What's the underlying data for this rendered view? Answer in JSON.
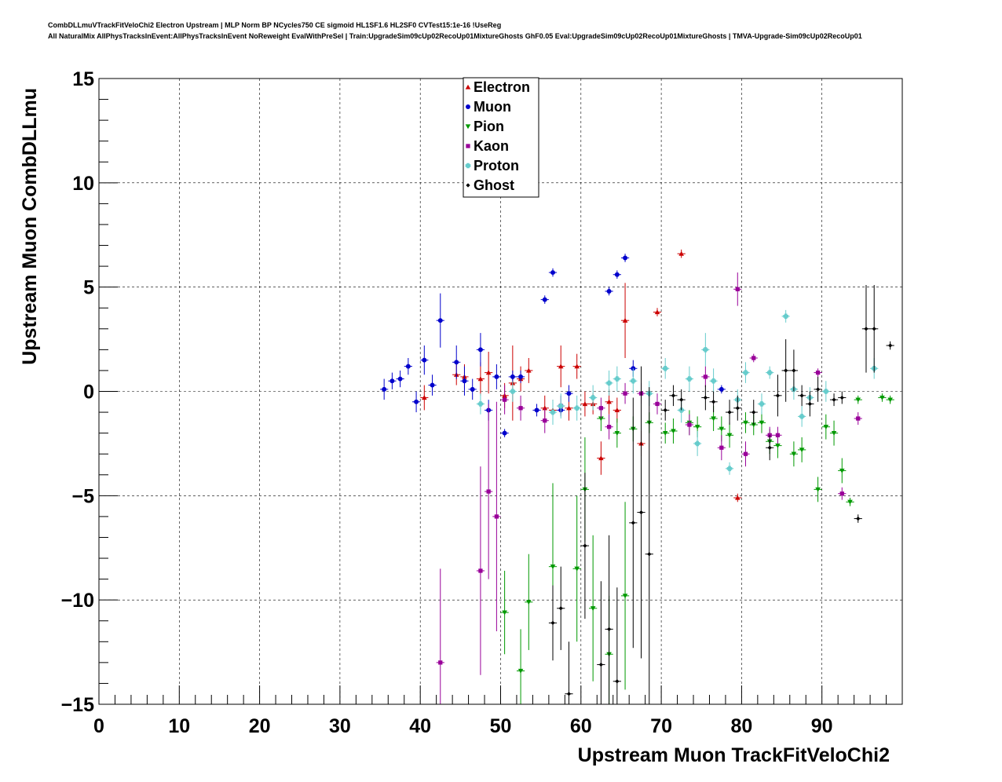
{
  "title_lines": [
    "CombDLLmuVTrackFitVeloChi2 Electron Upstream | MLP Norm BP NCycles750 CE sigmoid HL1SF1.6 HL2SF0 CVTest15:1e-16 !UseReg",
    "All NaturalMix AllPhysTracksInEvent:AllPhysTracksInEvent NoReweight EvalWithPreSel | Train:UpgradeSim09cUp02RecoUp01MixtureGhosts GhF0.05 Eval:UpgradeSim09cUp02RecoUp01MixtureGhosts | TMVA-Upgrade-Sim09cUp02RecoUp01"
  ],
  "chart_data": {
    "type": "scatter",
    "xlabel": "Upstream Muon TrackFitVeloChi2",
    "ylabel": "Upstream Muon CombDLLmu",
    "xlim": [
      0,
      100
    ],
    "ylim": [
      -15,
      15
    ],
    "xticks": [
      0,
      10,
      20,
      30,
      40,
      50,
      60,
      70,
      80,
      90
    ],
    "yticks": [
      -15,
      -10,
      -5,
      0,
      5,
      10,
      15
    ],
    "grid": true,
    "legend_position": "top-center",
    "series": [
      {
        "name": "Electron",
        "color": "#cc0000",
        "marker": "triangle-up",
        "points": [
          [
            40.5,
            -0.3,
            0.6
          ],
          [
            44.5,
            0.8,
            0.5
          ],
          [
            45.5,
            0.7,
            0.6
          ],
          [
            47.5,
            0.6,
            0.8
          ],
          [
            48.5,
            0.9,
            1.0
          ],
          [
            50.5,
            -0.2,
            0.6
          ],
          [
            51.5,
            0.4,
            1.8
          ],
          [
            52.5,
            0.6,
            0.6
          ],
          [
            53.5,
            1.0,
            0.6
          ],
          [
            55.5,
            -0.8,
            0.6
          ],
          [
            56.5,
            -0.9,
            0.5
          ],
          [
            57.5,
            1.2,
            1.0
          ],
          [
            58.5,
            -0.8,
            0.6
          ],
          [
            59.5,
            1.2,
            0.6
          ],
          [
            60.5,
            -0.6,
            0.6
          ],
          [
            61.5,
            -0.6,
            0.5
          ],
          [
            62.5,
            -3.2,
            0.8
          ],
          [
            63.5,
            -0.5,
            0.6
          ],
          [
            64.5,
            -0.9,
            0.6
          ],
          [
            65.5,
            3.4,
            1.8
          ],
          [
            67.5,
            -2.5,
            0.6
          ],
          [
            69.5,
            3.8,
            0.2
          ],
          [
            72.5,
            6.6,
            0.2
          ],
          [
            79.5,
            -5.1,
            0.2
          ]
        ]
      },
      {
        "name": "Muon",
        "color": "#0000cc",
        "marker": "circle",
        "points": [
          [
            35.5,
            0.1,
            0.5
          ],
          [
            36.5,
            0.5,
            0.4
          ],
          [
            37.5,
            0.6,
            0.4
          ],
          [
            38.5,
            1.2,
            0.4
          ],
          [
            39.5,
            -0.5,
            0.5
          ],
          [
            40.5,
            1.5,
            0.7
          ],
          [
            41.5,
            0.3,
            0.5
          ],
          [
            42.5,
            3.4,
            1.3
          ],
          [
            44.5,
            1.4,
            0.8
          ],
          [
            45.5,
            0.5,
            0.7
          ],
          [
            46.5,
            0.1,
            0.5
          ],
          [
            47.5,
            2.0,
            0.8
          ],
          [
            48.5,
            -0.9,
            0.5
          ],
          [
            49.5,
            0.7,
            0.6
          ],
          [
            50.5,
            -2.0,
            0.2
          ],
          [
            51.5,
            0.7,
            0.3
          ],
          [
            52.5,
            0.7,
            0.3
          ],
          [
            54.5,
            -0.9,
            0.3
          ],
          [
            55.5,
            4.4,
            0.2
          ],
          [
            56.5,
            5.7,
            0.2
          ],
          [
            57.5,
            -0.9,
            0.2
          ],
          [
            58.5,
            -0.1,
            0.4
          ],
          [
            63.5,
            4.8,
            0.2
          ],
          [
            64.5,
            5.6,
            0.2
          ],
          [
            65.5,
            6.4,
            0.2
          ],
          [
            66.5,
            1.1,
            0.4
          ],
          [
            77.5,
            0.1,
            0.2
          ]
        ]
      },
      {
        "name": "Pion",
        "color": "#009900",
        "marker": "triangle-down",
        "points": [
          [
            50.5,
            -10.6,
            2.0
          ],
          [
            52.5,
            -13.4,
            2.0
          ],
          [
            53.5,
            -10.1,
            2.3
          ],
          [
            56.5,
            -8.4,
            4.0
          ],
          [
            59.5,
            -8.5,
            3.5
          ],
          [
            60.5,
            -4.7,
            2.5
          ],
          [
            61.5,
            -10.4,
            3.5
          ],
          [
            62.5,
            -1.3,
            0.6
          ],
          [
            63.5,
            -12.6,
            2.8
          ],
          [
            64.5,
            -2.0,
            0.7
          ],
          [
            65.5,
            -9.8,
            4.5
          ],
          [
            66.5,
            -1.8,
            0.6
          ],
          [
            68.5,
            -1.5,
            0.5
          ],
          [
            70.5,
            -2.0,
            0.5
          ],
          [
            71.5,
            -1.9,
            0.6
          ],
          [
            73.5,
            -1.5,
            0.6
          ],
          [
            74.5,
            -1.7,
            0.5
          ],
          [
            76.5,
            -1.3,
            0.6
          ],
          [
            77.5,
            -1.8,
            0.6
          ],
          [
            78.5,
            -2.1,
            0.6
          ],
          [
            80.5,
            -1.5,
            0.5
          ],
          [
            81.5,
            -1.6,
            0.5
          ],
          [
            82.5,
            -1.5,
            0.5
          ],
          [
            83.5,
            -2.4,
            0.6
          ],
          [
            84.5,
            -2.6,
            0.6
          ],
          [
            86.5,
            -3.0,
            0.6
          ],
          [
            87.5,
            -2.8,
            0.6
          ],
          [
            89.5,
            -4.7,
            0.6
          ],
          [
            90.5,
            -1.7,
            0.6
          ],
          [
            91.5,
            -2.0,
            0.6
          ],
          [
            92.5,
            -3.8,
            0.6
          ],
          [
            93.5,
            -5.3,
            0.2
          ],
          [
            94.5,
            -0.4,
            0.2
          ],
          [
            97.5,
            -0.3,
            0.2
          ],
          [
            98.5,
            -0.4,
            0.2
          ]
        ]
      },
      {
        "name": "Kaon",
        "color": "#990099",
        "marker": "square",
        "points": [
          [
            42.5,
            -13.0,
            4.5
          ],
          [
            47.5,
            -8.6,
            5.0
          ],
          [
            48.5,
            -4.8,
            4.2
          ],
          [
            49.5,
            -6.0,
            5.5
          ],
          [
            50.5,
            -0.4,
            0.7
          ],
          [
            52.5,
            -0.8,
            0.6
          ],
          [
            55.5,
            -1.4,
            0.6
          ],
          [
            57.5,
            -0.7,
            0.5
          ],
          [
            62.5,
            -0.8,
            0.5
          ],
          [
            63.5,
            -1.7,
            0.6
          ],
          [
            65.5,
            -0.1,
            0.5
          ],
          [
            67.5,
            -0.1,
            0.5
          ],
          [
            69.5,
            -0.6,
            0.5
          ],
          [
            73.5,
            -1.6,
            0.5
          ],
          [
            75.5,
            0.7,
            0.5
          ],
          [
            77.5,
            -2.7,
            0.6
          ],
          [
            79.5,
            4.9,
            0.8
          ],
          [
            80.5,
            -3.0,
            0.6
          ],
          [
            81.5,
            1.6,
            0.2
          ],
          [
            83.5,
            -2.1,
            0.4
          ],
          [
            84.5,
            -2.1,
            0.4
          ],
          [
            89.5,
            0.9,
            0.2
          ],
          [
            92.5,
            -4.9,
            0.3
          ],
          [
            94.5,
            -1.3,
            0.3
          ]
        ]
      },
      {
        "name": "Proton",
        "color": "#66cccc",
        "marker": "cross",
        "points": [
          [
            47.5,
            -0.6,
            0.5
          ],
          [
            51.5,
            0.0,
            0.5
          ],
          [
            56.5,
            -1.0,
            0.6
          ],
          [
            57.5,
            -0.7,
            0.6
          ],
          [
            59.5,
            -0.8,
            0.6
          ],
          [
            61.5,
            -0.3,
            0.6
          ],
          [
            63.5,
            0.4,
            0.6
          ],
          [
            64.5,
            0.6,
            0.6
          ],
          [
            66.5,
            0.5,
            0.6
          ],
          [
            68.5,
            -0.1,
            0.6
          ],
          [
            70.5,
            1.1,
            0.5
          ],
          [
            72.5,
            -0.9,
            0.6
          ],
          [
            73.5,
            0.6,
            0.6
          ],
          [
            74.5,
            -2.5,
            0.6
          ],
          [
            75.5,
            2.0,
            0.8
          ],
          [
            76.5,
            0.5,
            0.6
          ],
          [
            78.5,
            -3.7,
            0.3
          ],
          [
            79.5,
            -0.4,
            0.5
          ],
          [
            80.5,
            0.9,
            0.5
          ],
          [
            82.5,
            -0.6,
            0.5
          ],
          [
            83.5,
            0.9,
            0.3
          ],
          [
            85.5,
            3.6,
            0.3
          ],
          [
            86.5,
            0.1,
            0.5
          ],
          [
            87.5,
            -1.2,
            0.5
          ],
          [
            88.5,
            -0.3,
            0.5
          ],
          [
            90.5,
            0.0,
            0.5
          ],
          [
            96.5,
            1.1,
            0.5
          ]
        ]
      },
      {
        "name": "Ghost",
        "color": "#000000",
        "marker": "diamond",
        "points": [
          [
            56.5,
            -11.1,
            1.8
          ],
          [
            57.5,
            -10.4,
            2.0
          ],
          [
            58.5,
            -14.5,
            2.5
          ],
          [
            60.5,
            -7.4,
            3.5
          ],
          [
            62.5,
            -13.1,
            4.0
          ],
          [
            63.5,
            -11.4,
            4.5
          ],
          [
            64.5,
            -13.9,
            4.5
          ],
          [
            66.5,
            -6.3,
            6.0
          ],
          [
            67.5,
            -5.8,
            7.0
          ],
          [
            68.5,
            -7.8,
            8.0
          ],
          [
            70.5,
            -0.9,
            0.5
          ],
          [
            71.5,
            -0.2,
            0.5
          ],
          [
            72.5,
            -0.4,
            0.5
          ],
          [
            75.5,
            -0.3,
            0.6
          ],
          [
            76.5,
            -0.5,
            0.5
          ],
          [
            78.5,
            -1.0,
            0.6
          ],
          [
            79.5,
            -0.8,
            0.6
          ],
          [
            81.5,
            -1.0,
            0.6
          ],
          [
            83.5,
            -2.7,
            0.6
          ],
          [
            84.5,
            -0.2,
            1.0
          ],
          [
            85.5,
            1.0,
            1.5
          ],
          [
            86.5,
            1.0,
            1.0
          ],
          [
            87.5,
            -0.2,
            0.5
          ],
          [
            88.5,
            -0.6,
            0.6
          ],
          [
            89.5,
            0.1,
            0.6
          ],
          [
            91.5,
            -0.4,
            0.3
          ],
          [
            92.5,
            -0.3,
            0.3
          ],
          [
            94.5,
            -6.1,
            0.2
          ],
          [
            95.5,
            3.0,
            2.1
          ],
          [
            96.5,
            3.0,
            2.1
          ],
          [
            98.5,
            2.2,
            0.2
          ]
        ]
      }
    ]
  }
}
